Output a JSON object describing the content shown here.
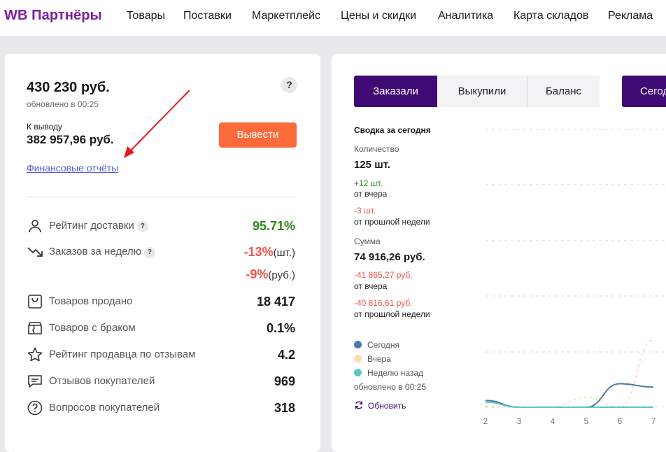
{
  "nav": {
    "logo": "WB Партнёры",
    "items": [
      "Товары",
      "Поставки",
      "Маркетплейс",
      "Цены и скидки",
      "Аналитика",
      "Карта складов",
      "Реклама"
    ]
  },
  "balance": {
    "amount": "430 230 руб.",
    "updated": "обновлено в 00:25",
    "help": "?",
    "withdraw_label": "К выводу",
    "withdraw_amount": "382 957,96 руб.",
    "withdraw_button": "Вывести",
    "reports_link": "Финансовые отчёты"
  },
  "metrics": {
    "delivery": {
      "label": "Рейтинг доставки",
      "help": "?",
      "value": "95.71%"
    },
    "orders_week": {
      "label": "Заказов за неделю",
      "help": "?",
      "value1": "-13%",
      "unit1": "(шт.)",
      "value2": "-9%",
      "unit2": "(руб.)"
    },
    "sold": {
      "label": "Товаров продано",
      "value": "18 417"
    },
    "defect": {
      "label": "Товаров с браком",
      "value": "0.1%"
    },
    "seller_rating": {
      "label": "Рейтинг продавца по отзывам",
      "value": "4.2"
    },
    "reviews": {
      "label": "Отзывов покупателей",
      "value": "969"
    },
    "questions": {
      "label": "Вопросов покупателей",
      "value": "318"
    }
  },
  "tabs": [
    "Заказали",
    "Выкупили",
    "Баланс",
    "Сегодня"
  ],
  "summary": {
    "title": "Сводка за сегодня",
    "qty_label": "Количество",
    "qty_value": "125 шт.",
    "qty_delta_day": "+12 шт.",
    "qty_delta_day_sub": "от вчера",
    "qty_delta_week": "-3 шт.",
    "qty_delta_week_sub": "от прошлой недели",
    "sum_label": "Сумма",
    "sum_value": "74 916,26 руб.",
    "sum_delta_day": "-41 865,27 руб.",
    "sum_delta_day_sub": "от вчера",
    "sum_delta_week": "-40 816,61 руб.",
    "sum_delta_week_sub": "от прошлой недели"
  },
  "legend": {
    "today": "Сегодня",
    "yesterday": "Вчера",
    "week_ago": "Неделю назад",
    "updated": "обновлено в 00:25",
    "refresh": "Обновить"
  },
  "colors": {
    "brand": "#7b1fa2",
    "tab_active": "#3f0a73",
    "withdraw": "#fd6b3a",
    "positive": "#2b8a18",
    "negative": "#f0524c",
    "series_today": "#4a7aa8",
    "series_yesterday": "#f5dfb0",
    "series_week_ago": "#5cc8c4"
  },
  "chart_data": {
    "type": "line",
    "x": [
      2,
      3,
      4,
      5,
      6,
      7
    ],
    "series": [
      {
        "name": "Сегодня",
        "values": [
          0.4,
          0,
          0,
          0,
          1.4,
          1.2
        ]
      },
      {
        "name": "Вчера",
        "values": [
          0,
          0,
          0,
          0.6,
          0,
          4
        ]
      },
      {
        "name": "Неделю назад",
        "values": [
          0.3,
          0,
          0,
          0,
          0,
          0
        ]
      }
    ],
    "grid": true
  }
}
